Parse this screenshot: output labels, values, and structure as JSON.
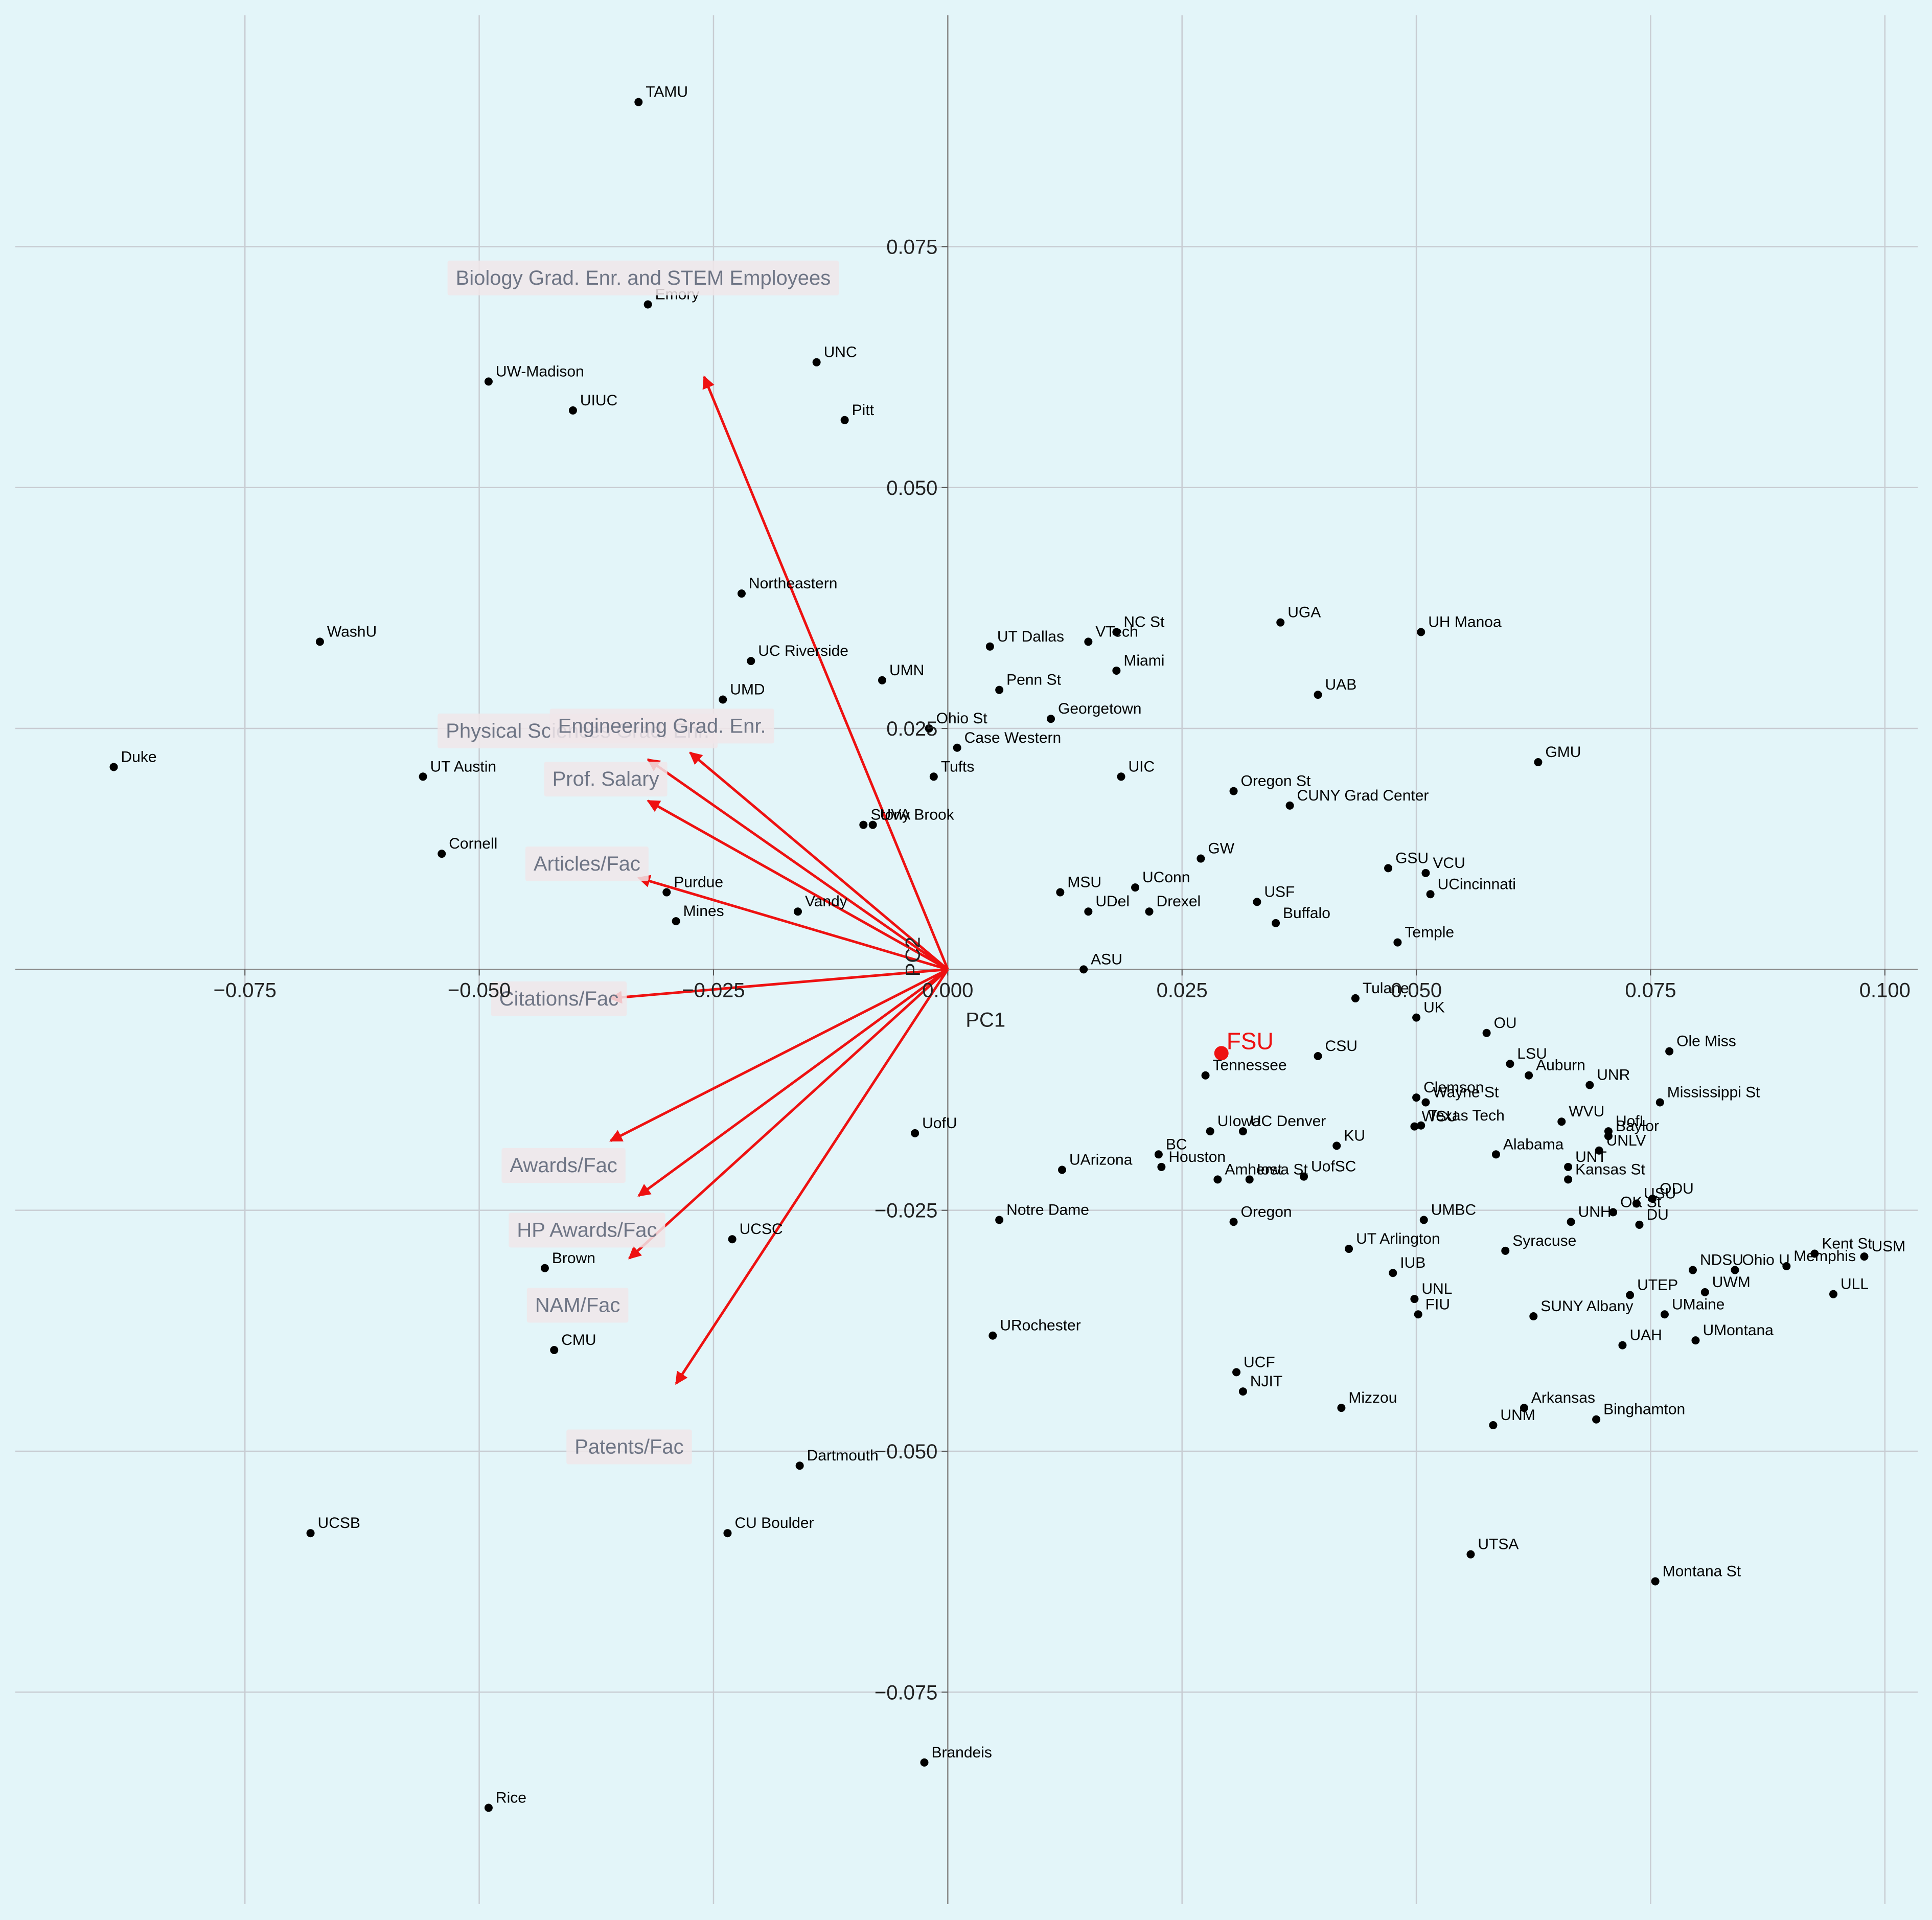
{
  "chart_data": {
    "type": "scatter",
    "title": "",
    "xlabel": "PC1",
    "ylabel": "PC2",
    "xlim": [
      -0.0995,
      0.1035
    ],
    "ylim": [
      -0.097,
      0.099
    ],
    "xticks": [
      -0.075,
      -0.05,
      -0.025,
      0.0,
      0.025,
      0.05,
      0.075,
      0.1
    ],
    "xtick_labels": [
      "−0.075",
      "−0.050",
      "−0.025",
      "0.000",
      "0.025",
      "0.050",
      "0.075",
      "0.100"
    ],
    "yticks": [
      -0.075,
      -0.05,
      -0.025,
      0.0,
      0.025,
      0.05,
      0.075
    ],
    "ytick_labels": [
      "−0.075",
      "−0.050",
      "−0.025",
      "0.000",
      "0.025",
      "0.050",
      "0.075"
    ],
    "grid": true,
    "colors": {
      "background": "#e3f5f9",
      "grid": "#c8ccd2",
      "points": "#000000",
      "arrows": "#ee1111",
      "highlight": "#ee1111",
      "loading_box": "#f0e6ea",
      "loading_text": "#6e7585"
    },
    "points": [
      {
        "name": "TAMU",
        "x": -0.033,
        "y": 0.09
      },
      {
        "name": "Emory",
        "x": -0.032,
        "y": 0.069
      },
      {
        "name": "UNC",
        "x": -0.014,
        "y": 0.063
      },
      {
        "name": "UW-Madison",
        "x": -0.049,
        "y": 0.061
      },
      {
        "name": "UIUC",
        "x": -0.04,
        "y": 0.058
      },
      {
        "name": "Pitt",
        "x": -0.011,
        "y": 0.057
      },
      {
        "name": "Northeastern",
        "x": -0.022,
        "y": 0.039
      },
      {
        "name": "WashU",
        "x": -0.067,
        "y": 0.034
      },
      {
        "name": "UC Riverside",
        "x": -0.021,
        "y": 0.032
      },
      {
        "name": "UMN",
        "x": -0.007,
        "y": 0.03
      },
      {
        "name": "UMD",
        "x": -0.024,
        "y": 0.028
      },
      {
        "name": "Ohio St",
        "x": -0.002,
        "y": 0.025
      },
      {
        "name": "Duke",
        "x": -0.089,
        "y": 0.021
      },
      {
        "name": "UT Austin",
        "x": -0.056,
        "y": 0.02
      },
      {
        "name": "Tufts",
        "x": -0.0015,
        "y": 0.02
      },
      {
        "name": "UVA",
        "x": -0.008,
        "y": 0.015
      },
      {
        "name": "Stony Brook",
        "x": -0.009,
        "y": 0.015
      },
      {
        "name": "Cornell",
        "x": -0.054,
        "y": 0.012
      },
      {
        "name": "Purdue",
        "x": -0.03,
        "y": 0.008
      },
      {
        "name": "Mines",
        "x": -0.029,
        "y": 0.005
      },
      {
        "name": "Vandy",
        "x": -0.016,
        "y": 0.006
      },
      {
        "name": "UT Dallas",
        "x": 0.0045,
        "y": 0.0335
      },
      {
        "name": "NC St",
        "x": 0.018,
        "y": 0.035
      },
      {
        "name": "VTech",
        "x": 0.015,
        "y": 0.034
      },
      {
        "name": "Miami",
        "x": 0.018,
        "y": 0.031
      },
      {
        "name": "Penn St",
        "x": 0.0055,
        "y": 0.029
      },
      {
        "name": "Georgetown",
        "x": 0.011,
        "y": 0.026
      },
      {
        "name": "Case Western",
        "x": 0.001,
        "y": 0.023
      },
      {
        "name": "UGA",
        "x": 0.0355,
        "y": 0.036
      },
      {
        "name": "UH Manoa",
        "x": 0.0505,
        "y": 0.035
      },
      {
        "name": "UAB",
        "x": 0.0395,
        "y": 0.0285
      },
      {
        "name": "GMU",
        "x": 0.063,
        "y": 0.0215
      },
      {
        "name": "UIC",
        "x": 0.0185,
        "y": 0.02
      },
      {
        "name": "Oregon St",
        "x": 0.0305,
        "y": 0.0185
      },
      {
        "name": "CUNY Grad Center",
        "x": 0.0365,
        "y": 0.017
      },
      {
        "name": "GW",
        "x": 0.027,
        "y": 0.0115
      },
      {
        "name": "GSU",
        "x": 0.047,
        "y": 0.0105
      },
      {
        "name": "VCU",
        "x": 0.051,
        "y": 0.01
      },
      {
        "name": "MSU",
        "x": 0.012,
        "y": 0.008
      },
      {
        "name": "UConn",
        "x": 0.02,
        "y": 0.0085
      },
      {
        "name": "UCincinnati",
        "x": 0.0515,
        "y": 0.0078
      },
      {
        "name": "UDel",
        "x": 0.015,
        "y": 0.006
      },
      {
        "name": "Drexel",
        "x": 0.0215,
        "y": 0.006
      },
      {
        "name": "USF",
        "x": 0.033,
        "y": 0.007
      },
      {
        "name": "Buffalo",
        "x": 0.035,
        "y": 0.0048
      },
      {
        "name": "Temple",
        "x": 0.048,
        "y": 0.0028
      },
      {
        "name": "ASU",
        "x": 0.0145,
        "y": 0.0
      },
      {
        "name": "Tulane",
        "x": 0.0435,
        "y": -0.003
      },
      {
        "name": "UK",
        "x": 0.05,
        "y": -0.005
      },
      {
        "name": "OU",
        "x": 0.0575,
        "y": -0.0066
      },
      {
        "name": "Ole Miss",
        "x": 0.077,
        "y": -0.0085
      },
      {
        "name": "CSU",
        "x": 0.0395,
        "y": -0.009
      },
      {
        "name": "LSU",
        "x": 0.06,
        "y": -0.0098
      },
      {
        "name": "Tennessee",
        "x": 0.0275,
        "y": -0.011
      },
      {
        "name": "Auburn",
        "x": 0.062,
        "y": -0.011
      },
      {
        "name": "UNR",
        "x": 0.0685,
        "y": -0.012
      },
      {
        "name": "Mississippi St",
        "x": 0.076,
        "y": -0.0138
      },
      {
        "name": "Clemson",
        "x": 0.05,
        "y": -0.0133
      },
      {
        "name": "Wayne St",
        "x": 0.051,
        "y": -0.0138
      },
      {
        "name": "Texas Tech",
        "x": 0.0505,
        "y": -0.0162
      },
      {
        "name": "WSU",
        "x": 0.0498,
        "y": -0.0163
      },
      {
        "name": "WVU",
        "x": 0.0655,
        "y": -0.0158
      },
      {
        "name": "UofL",
        "x": 0.0705,
        "y": -0.0168
      },
      {
        "name": "Baylor",
        "x": 0.0705,
        "y": -0.0173
      },
      {
        "name": "UNLV",
        "x": 0.0695,
        "y": -0.0188
      },
      {
        "name": "UIowa",
        "x": 0.028,
        "y": -0.0168
      },
      {
        "name": "UC Denver",
        "x": 0.0315,
        "y": -0.0168
      },
      {
        "name": "Alabama",
        "x": 0.0585,
        "y": -0.0192
      },
      {
        "name": "KU",
        "x": 0.0415,
        "y": -0.0183
      },
      {
        "name": "BC",
        "x": 0.0225,
        "y": -0.0192
      },
      {
        "name": "UArizona",
        "x": 0.0122,
        "y": -0.0208
      },
      {
        "name": "Houston",
        "x": 0.0228,
        "y": -0.0205
      },
      {
        "name": "UNT",
        "x": 0.0662,
        "y": -0.0205
      },
      {
        "name": "Iowa St",
        "x": 0.0322,
        "y": -0.0218
      },
      {
        "name": "Amherst",
        "x": 0.0288,
        "y": -0.0218
      },
      {
        "name": "UofSC",
        "x": 0.038,
        "y": -0.0215
      },
      {
        "name": "Kansas St",
        "x": 0.0662,
        "y": -0.0218
      },
      {
        "name": "ODU",
        "x": 0.0752,
        "y": -0.0238
      },
      {
        "name": "USU",
        "x": 0.0735,
        "y": -0.0243
      },
      {
        "name": "OK St",
        "x": 0.071,
        "y": -0.0252
      },
      {
        "name": "UNH",
        "x": 0.0665,
        "y": -0.0262
      },
      {
        "name": "DU",
        "x": 0.0738,
        "y": -0.0265
      },
      {
        "name": "UMBC",
        "x": 0.0508,
        "y": -0.026
      },
      {
        "name": "Oregon",
        "x": 0.0305,
        "y": -0.0262
      },
      {
        "name": "Notre Dame",
        "x": 0.0055,
        "y": -0.026
      },
      {
        "name": "UCSC",
        "x": -0.023,
        "y": -0.028
      },
      {
        "name": "UofU",
        "x": -0.0035,
        "y": -0.017
      },
      {
        "name": "UT Arlington",
        "x": 0.0428,
        "y": -0.029
      },
      {
        "name": "Syracuse",
        "x": 0.0595,
        "y": -0.0292
      },
      {
        "name": "Kent St",
        "x": 0.0925,
        "y": -0.0295
      },
      {
        "name": "USM",
        "x": 0.0978,
        "y": -0.0298
      },
      {
        "name": "Memphis",
        "x": 0.0895,
        "y": -0.0308
      },
      {
        "name": "NDSU",
        "x": 0.0795,
        "y": -0.0312
      },
      {
        "name": "Ohio U",
        "x": 0.084,
        "y": -0.0312
      },
      {
        "name": "IUB",
        "x": 0.0475,
        "y": -0.0315
      },
      {
        "name": "UTEP",
        "x": 0.0728,
        "y": -0.0338
      },
      {
        "name": "UWM",
        "x": 0.0808,
        "y": -0.0335
      },
      {
        "name": "ULL",
        "x": 0.0945,
        "y": -0.0337
      },
      {
        "name": "UNL",
        "x": 0.0498,
        "y": -0.0342
      },
      {
        "name": "FIU",
        "x": 0.0502,
        "y": -0.0358
      },
      {
        "name": "UMaine",
        "x": 0.0765,
        "y": -0.0358
      },
      {
        "name": "SUNY Albany",
        "x": 0.0625,
        "y": -0.036
      },
      {
        "name": "UMontana",
        "x": 0.0798,
        "y": -0.0385
      },
      {
        "name": "UAH",
        "x": 0.072,
        "y": -0.039
      },
      {
        "name": "Brown",
        "x": -0.043,
        "y": -0.031
      },
      {
        "name": "CMU",
        "x": -0.042,
        "y": -0.0395
      },
      {
        "name": "URochester",
        "x": 0.0048,
        "y": -0.038
      },
      {
        "name": "UCF",
        "x": 0.0308,
        "y": -0.0418
      },
      {
        "name": "NJIT",
        "x": 0.0315,
        "y": -0.0438
      },
      {
        "name": "Mizzou",
        "x": 0.042,
        "y": -0.0455
      },
      {
        "name": "Arkansas",
        "x": 0.0615,
        "y": -0.0455
      },
      {
        "name": "Binghamton",
        "x": 0.0692,
        "y": -0.0467
      },
      {
        "name": "UNM",
        "x": 0.0582,
        "y": -0.0473
      },
      {
        "name": "Dartmouth",
        "x": -0.0158,
        "y": -0.0515
      },
      {
        "name": "UCSB",
        "x": -0.068,
        "y": -0.0585
      },
      {
        "name": "CU Boulder",
        "x": -0.0235,
        "y": -0.0585
      },
      {
        "name": "UTSA",
        "x": 0.0558,
        "y": -0.0607
      },
      {
        "name": "Montana St",
        "x": 0.0755,
        "y": -0.0635
      },
      {
        "name": "Brandeis",
        "x": -0.0025,
        "y": -0.0823
      },
      {
        "name": "Rice",
        "x": -0.049,
        "y": -0.087
      }
    ],
    "highlight": {
      "name": "FSU",
      "x": 0.0292,
      "y": -0.0087
    },
    "loadings": [
      {
        "name": "Biology Grad. Enr. and STEM Employees",
        "x": -0.026,
        "y": 0.0615,
        "label_x": -0.0325,
        "label_y": 0.0718
      },
      {
        "name": "Physical Sciences Grad. Enr.",
        "x": -0.0275,
        "y": 0.0225,
        "label_x": -0.0395,
        "label_y": 0.0248
      },
      {
        "name": "Engineering Grad. Enr.",
        "x": -0.032,
        "y": 0.0218,
        "label_x": -0.0305,
        "label_y": 0.0253
      },
      {
        "name": "Prof. Salary",
        "x": -0.032,
        "y": 0.0175,
        "label_x": -0.0365,
        "label_y": 0.0198
      },
      {
        "name": "Articles/Fac",
        "x": -0.033,
        "y": 0.0095,
        "label_x": -0.0385,
        "label_y": 0.011
      },
      {
        "name": "Citations/Fac",
        "x": -0.036,
        "y": -0.003,
        "label_x": -0.0415,
        "label_y": -0.003
      },
      {
        "name": "Awards/Fac",
        "x": -0.036,
        "y": -0.0178,
        "label_x": -0.041,
        "label_y": -0.0203
      },
      {
        "name": "HP Awards/Fac",
        "x": -0.033,
        "y": -0.0235,
        "label_x": -0.0385,
        "label_y": -0.027
      },
      {
        "name": "NAM/Fac",
        "x": -0.034,
        "y": -0.03,
        "label_x": -0.0395,
        "label_y": -0.0348
      },
      {
        "name": "Patents/Fac",
        "x": -0.029,
        "y": -0.043,
        "label_x": -0.034,
        "label_y": -0.0495
      }
    ]
  }
}
